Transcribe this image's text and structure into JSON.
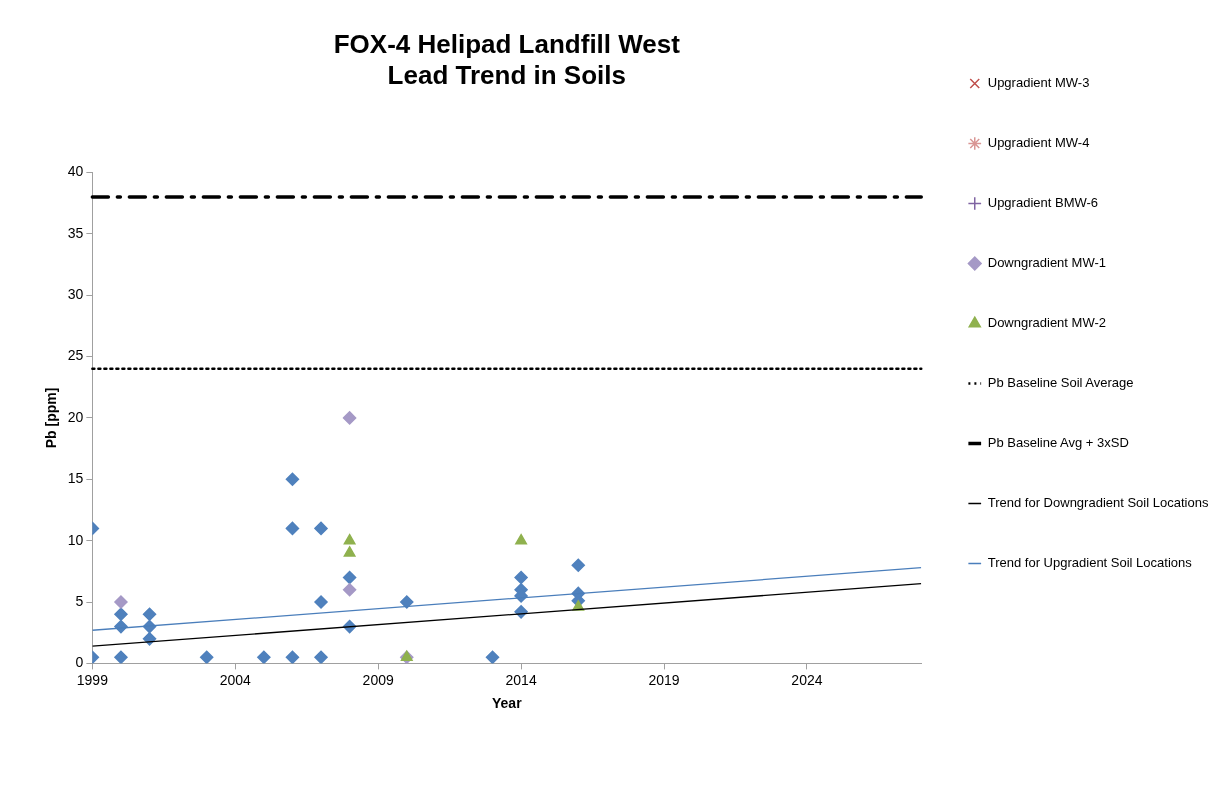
{
  "chart_data": {
    "type": "scatter",
    "title": [
      "FOX-4 Helipad Landfill West",
      "Lead Trend in Soils"
    ],
    "xlabel": "Year",
    "ylabel": "Pb [ppm]",
    "xlim": [
      1999,
      2028
    ],
    "xticks": [
      1999,
      2004,
      2009,
      2014,
      2019,
      2024
    ],
    "ylim": [
      0,
      40
    ],
    "yticks": [
      0,
      5,
      10,
      15,
      20,
      25,
      30,
      35,
      40
    ],
    "grid": false,
    "legend": "right",
    "series": [
      {
        "color": "#4f81bd",
        "marker": "diamond",
        "x": [
          1999,
          1999,
          2000,
          2000,
          2000,
          2001,
          2001,
          2001,
          2003,
          2005,
          2006,
          2006,
          2006,
          2007,
          2007,
          2007,
          2008,
          2008,
          2010,
          2013,
          2014,
          2014,
          2014,
          2014,
          2016,
          2016,
          2016
        ],
        "values": [
          11,
          0.5,
          4,
          3,
          0.5,
          4,
          3,
          2,
          0.5,
          0.5,
          15,
          11,
          0.5,
          11,
          5,
          0.5,
          7,
          3,
          5,
          0.5,
          7,
          6,
          5.5,
          4.2,
          8,
          5.7,
          5.1
        ]
      },
      {
        "name": "Upgradient MW-3",
        "color": "#c0504d",
        "marker": "cross"
      },
      {
        "name": "Upgradient MW-4",
        "color": "#d99694",
        "marker": "star"
      },
      {
        "name": "Upgradient BMW-6",
        "color": "#7f64a2",
        "marker": "plus"
      },
      {
        "name": "Downgradient MW-1",
        "color": "#a599c6",
        "marker": "diamond",
        "x": [
          2000,
          2008,
          2008,
          2010
        ],
        "values": [
          5,
          20,
          6,
          0.5
        ]
      },
      {
        "name": "Downgradient MW-2",
        "color": "#8fb14e",
        "marker": "triangle",
        "x": [
          2008,
          2008,
          2010,
          2014,
          2016
        ],
        "values": [
          10,
          9,
          0.5,
          10,
          4.6
        ]
      },
      {
        "name": "Trend for Downgradient Soil Locations",
        "type": "line",
        "color": "#000000",
        "marker": "none",
        "x": [
          1999,
          2028
        ],
        "values": [
          1.4,
          6.5
        ]
      },
      {
        "name": "Trend for Upgradient Soil Locations",
        "type": "line",
        "color": "#4a7ebb",
        "marker": "none",
        "x": [
          1999,
          2028
        ],
        "values": [
          2.7,
          7.8
        ]
      }
    ],
    "ref_lines": [
      {
        "axis": "y",
        "value": 24,
        "label": "Pb Baseline Soil Average",
        "color": "#000000",
        "line_style": "dotted"
      },
      {
        "axis": "y",
        "value": 38,
        "label": "Pb Baseline Avg + 3xSD",
        "color": "#000000",
        "line_style": "dashed"
      }
    ]
  }
}
